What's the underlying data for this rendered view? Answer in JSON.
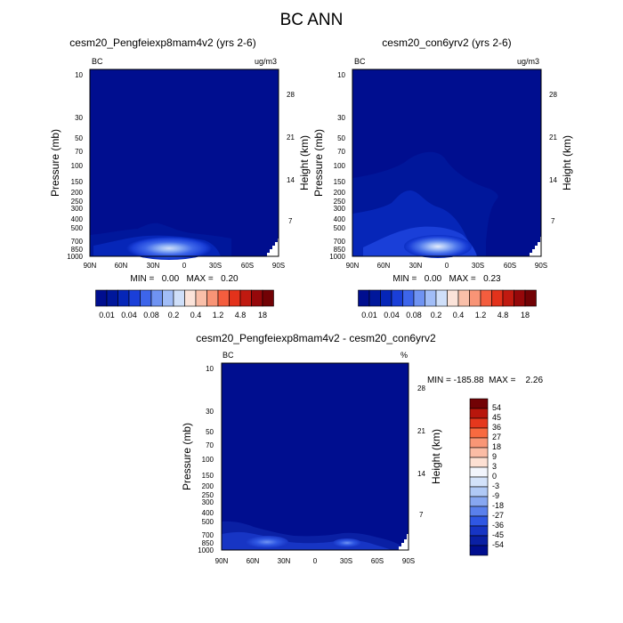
{
  "figure_title": "BC ANN",
  "panels": [
    {
      "title": "cesm20_Pengfeiexp8mam4v2 (yrs 2-6)",
      "left_label": "BC",
      "right_label": "ug/m3",
      "min_max_text": "MIN =   0.00   MAX =   0.20",
      "ylabel": "Pressure (mb)",
      "y2label": "Height (km)"
    },
    {
      "title": "cesm20_con6yrv2 (yrs 2-6)",
      "left_label": "BC",
      "right_label": "ug/m3",
      "min_max_text": "MIN =   0.00   MAX =   0.23",
      "ylabel": "Pressure (mb)",
      "y2label": "Height (km)"
    },
    {
      "title": "cesm20_Pengfeiexp8mam4v2 - cesm20_con6yrv2",
      "left_label": "BC",
      "right_label": "%",
      "min_max_text": "MIN = -185.88  MAX =    2.26",
      "ylabel": "Pressure (mb)",
      "y2label": "Height (km)"
    }
  ],
  "chart_data": [
    {
      "type": "heatmap",
      "title": "cesm20_Pengfeiexp8mam4v2 (yrs 2-6)",
      "ylabel": "Pressure (mb)",
      "y2label": "Height (km)",
      "units": "ug/m3",
      "x_ticks": [
        "90N",
        "60N",
        "30N",
        "0",
        "30S",
        "60S",
        "90S"
      ],
      "y_ticks": [
        10,
        30,
        50,
        70,
        100,
        150,
        200,
        250,
        300,
        400,
        500,
        700,
        850,
        1000
      ],
      "y_scale": "log",
      "ylim": [
        1000,
        10
      ],
      "y2_ticks": [
        28,
        21,
        14,
        7
      ],
      "min": 0.0,
      "max": 0.2,
      "contour_levels": [
        "0.01",
        "0.04",
        "0.08",
        "0.2",
        "0.4",
        "1.2",
        "4.8",
        "18"
      ],
      "colors": [
        "#000e8f",
        "#00179b",
        "#0626b8",
        "#1a3fd8",
        "#3d65ea",
        "#6f93f2",
        "#a1bdf7",
        "#cfdff9",
        "#fbe3d9",
        "#f9bfa9",
        "#f89476",
        "#f45d3e",
        "#e3321b",
        "#c01a10",
        "#96080a",
        "#720205"
      ]
    },
    {
      "type": "heatmap",
      "title": "cesm20_con6yrv2 (yrs 2-6)",
      "ylabel": "Pressure (mb)",
      "y2label": "Height (km)",
      "units": "ug/m3",
      "x_ticks": [
        "90N",
        "60N",
        "30N",
        "0",
        "30S",
        "60S",
        "90S"
      ],
      "y_ticks": [
        10,
        30,
        50,
        70,
        100,
        150,
        200,
        250,
        300,
        400,
        500,
        700,
        850,
        1000
      ],
      "y_scale": "log",
      "ylim": [
        1000,
        10
      ],
      "y2_ticks": [
        28,
        21,
        14,
        7
      ],
      "min": 0.0,
      "max": 0.23,
      "contour_levels": [
        "0.01",
        "0.04",
        "0.08",
        "0.2",
        "0.4",
        "1.2",
        "4.8",
        "18"
      ]
    },
    {
      "type": "heatmap",
      "title": "cesm20_Pengfeiexp8mam4v2 - cesm20_con6yrv2",
      "ylabel": "Pressure (mb)",
      "y2label": "Height (km)",
      "units": "%",
      "x_ticks": [
        "90N",
        "60N",
        "30N",
        "0",
        "30S",
        "60S",
        "90S"
      ],
      "y_ticks": [
        10,
        30,
        50,
        70,
        100,
        150,
        200,
        250,
        300,
        400,
        500,
        700,
        850,
        1000
      ],
      "y_scale": "log",
      "ylim": [
        1000,
        10
      ],
      "y2_ticks": [
        28,
        21,
        14,
        7
      ],
      "min": -185.88,
      "max": 2.26,
      "contour_levels": [
        "54",
        "45",
        "36",
        "27",
        "18",
        "9",
        "3",
        "0",
        "-3",
        "-9",
        "-18",
        "-27",
        "-36",
        "-45",
        "-54"
      ],
      "colors": [
        "#720205",
        "#b8160c",
        "#e5381d",
        "#f86a40",
        "#f99676",
        "#fbbca5",
        "#fde0d3",
        "#f2f5fc",
        "#d3e2fa",
        "#b0c9f6",
        "#87a7f1",
        "#5a80ec",
        "#2f57e3",
        "#1735c4",
        "#0a20a4",
        "#000e8f"
      ]
    }
  ]
}
